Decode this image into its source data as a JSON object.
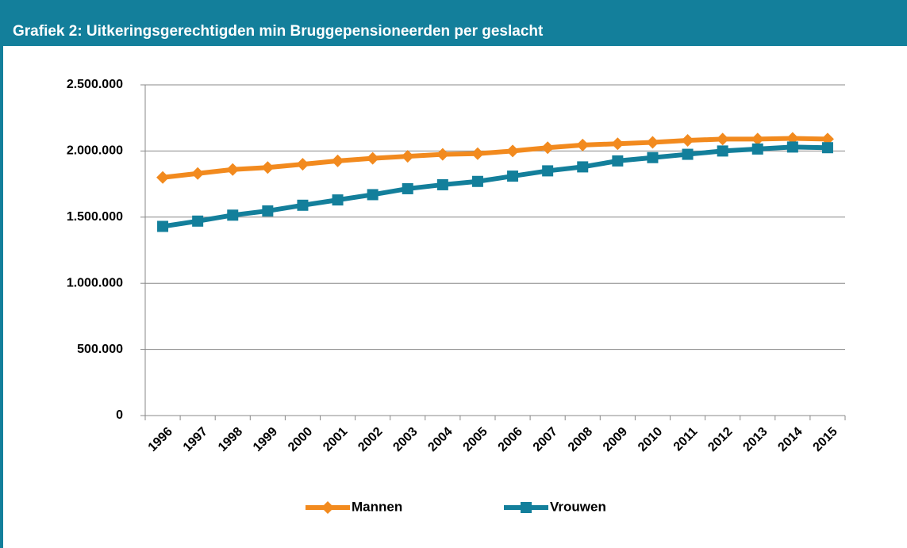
{
  "chart_data": {
    "type": "line",
    "title": "Grafiek 2: Uitkeringsgerechtigden min Bruggepensioneerden per geslacht",
    "categories": [
      "1996",
      "1997",
      "1998",
      "1999",
      "2000",
      "2001",
      "2002",
      "2003",
      "2004",
      "2005",
      "2006",
      "2007",
      "2008",
      "2009",
      "2010",
      "2011",
      "2012",
      "2013",
      "2014",
      "2015"
    ],
    "series": [
      {
        "name": "Mannen",
        "color": "#f28a1e",
        "marker": "diamond",
        "values": [
          1800000,
          1830000,
          1860000,
          1875000,
          1900000,
          1925000,
          1945000,
          1960000,
          1975000,
          1980000,
          2000000,
          2025000,
          2045000,
          2055000,
          2065000,
          2080000,
          2090000,
          2090000,
          2095000,
          2090000
        ]
      },
      {
        "name": "Vrouwen",
        "color": "#137f9b",
        "marker": "square",
        "values": [
          1430000,
          1470000,
          1515000,
          1547000,
          1590000,
          1630000,
          1670000,
          1715000,
          1745000,
          1770000,
          1810000,
          1850000,
          1880000,
          1925000,
          1950000,
          1975000,
          2000000,
          2015000,
          2030000,
          2025000
        ]
      }
    ],
    "ylim": [
      0,
      2500000
    ],
    "yticks": [
      0,
      {
        "value": 500000,
        "label": "500.000"
      },
      {
        "value": 1000000,
        "label": "1.000.000"
      },
      {
        "value": 1500000,
        "label": "1.500.000"
      },
      {
        "value": 2000000,
        "label": "2.000.000"
      },
      {
        "value": 2500000,
        "label": "2.500.000"
      }
    ],
    "grid": true,
    "legend": "bottom"
  }
}
